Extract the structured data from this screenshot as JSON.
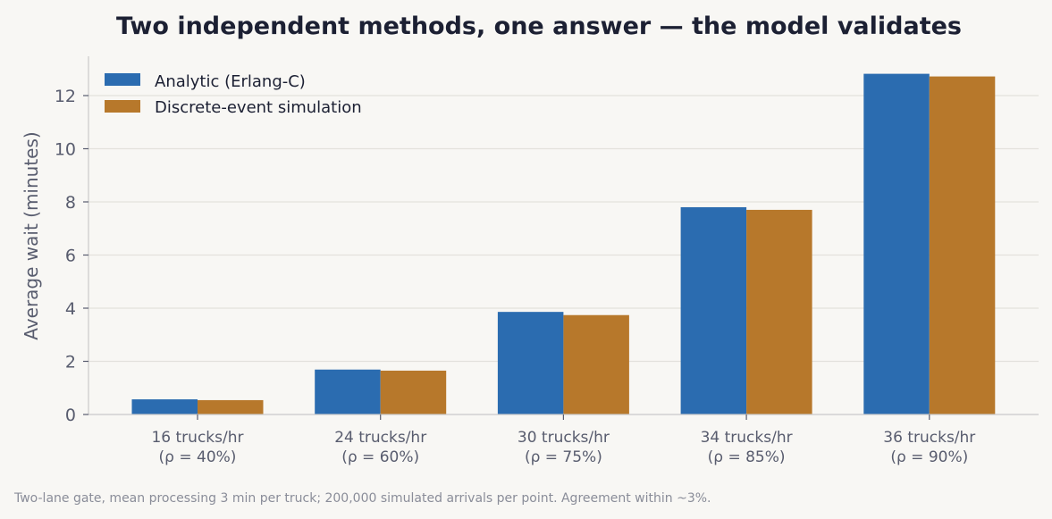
{
  "chart_data": {
    "type": "bar",
    "title": "Two independent methods, one answer — the model validates",
    "xlabel": "",
    "ylabel": "Average wait (minutes)",
    "ylim": [
      0,
      13.5
    ],
    "yticks": [
      0,
      2,
      4,
      6,
      8,
      10,
      12
    ],
    "grid": "horizontal",
    "legend_position": "top-left",
    "categories": [
      [
        "16 trucks/hr",
        "(ρ = 40%)"
      ],
      [
        "24 trucks/hr",
        "(ρ = 60%)"
      ],
      [
        "30 trucks/hr",
        "(ρ = 75%)"
      ],
      [
        "34 trucks/hr",
        "(ρ = 85%)"
      ],
      [
        "36 trucks/hr",
        "(ρ = 90%)"
      ]
    ],
    "series": [
      {
        "name": "Analytic (Erlang-C)",
        "color": "#2b6cb0",
        "values": [
          0.57,
          1.69,
          3.86,
          7.8,
          12.82
        ]
      },
      {
        "name": "Discrete-event simulation",
        "color": "#b7782b",
        "values": [
          0.54,
          1.65,
          3.74,
          7.7,
          12.72
        ]
      }
    ],
    "footnote": "Two-lane gate, mean processing 3 min per truck; 200,000 simulated arrivals per point. Agreement within ~3%."
  }
}
